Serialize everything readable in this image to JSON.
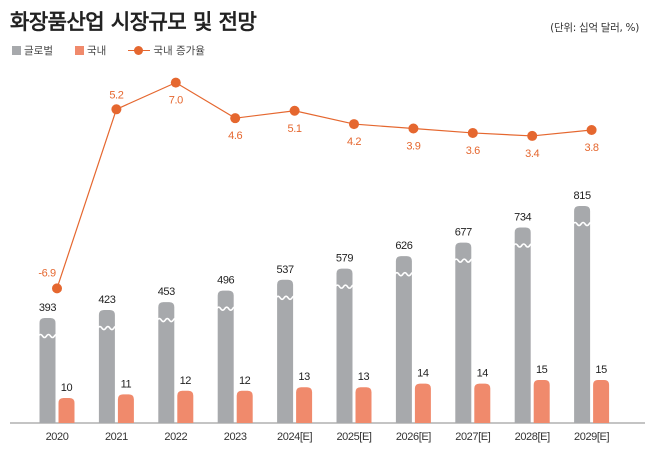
{
  "header": {
    "title": "화장품산업 시장규모 및 전망",
    "unit_note": "(단위: 십억 달러, %)"
  },
  "legend": [
    {
      "label": "글로벌",
      "kind": "bar",
      "color": "#a7a9ac"
    },
    {
      "label": "국내",
      "kind": "bar",
      "color": "#f08a6c"
    },
    {
      "label": "국내 증가율",
      "kind": "line",
      "color": "#e5672f"
    }
  ],
  "colors": {
    "global_bar": "#a7a9ac",
    "domestic_bar": "#f08a6c",
    "growth_line": "#e5672f",
    "value_label": "#222222",
    "growth_label": "#e5672f",
    "axis": "#888888"
  },
  "chart_data": {
    "type": "bar",
    "title": "화장품산업 시장규모 및 전망",
    "unit": "십억 달러, %",
    "xlabel": "",
    "ylabel": "",
    "grid": false,
    "legend_position": "top-left",
    "axis_break": "global bars use a broken (wavy) axis",
    "categories": [
      "2020",
      "2021",
      "2022",
      "2023",
      "2024[E]",
      "2025[E]",
      "2026[E]",
      "2027[E]",
      "2028[E]",
      "2029[E]"
    ],
    "series": [
      {
        "name": "글로벌",
        "type": "bar",
        "values": [
          393,
          423,
          453,
          496,
          537,
          579,
          626,
          677,
          734,
          815
        ]
      },
      {
        "name": "국내",
        "type": "bar",
        "values": [
          10,
          11,
          12,
          12,
          13,
          13,
          14,
          14,
          15,
          15
        ]
      },
      {
        "name": "국내 증가율",
        "type": "line",
        "values": [
          -6.9,
          5.2,
          7.0,
          4.6,
          5.1,
          4.2,
          3.9,
          3.6,
          3.4,
          3.8
        ]
      }
    ],
    "value_labels": {
      "글로벌": [
        "393",
        "423",
        "453",
        "496",
        "537",
        "579",
        "626",
        "677",
        "734",
        "815"
      ],
      "국내": [
        "10",
        "11",
        "12",
        "12",
        "13",
        "13",
        "14",
        "14",
        "15",
        "15"
      ],
      "국내 증가율": [
        "-6.9",
        "5.2",
        "7.0",
        "4.6",
        "5.1",
        "4.2",
        "3.9",
        "3.6",
        "3.4",
        "3.8"
      ]
    }
  }
}
